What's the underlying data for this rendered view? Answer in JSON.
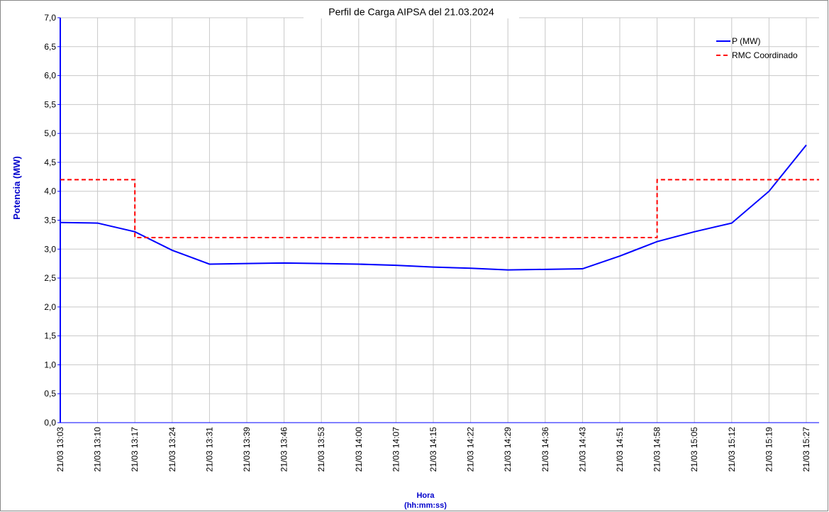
{
  "chart_data": {
    "type": "line",
    "title": "Perfil de Carga AIPSA del 21.03.2024",
    "ylabel": "Potencia (MW)",
    "xlabel": [
      "Hora",
      "(hh:mm:ss)"
    ],
    "categories": [
      "21/03 13:03",
      "21/03 13:10",
      "21/03 13:17",
      "21/03 13:24",
      "21/03 13:31",
      "21/03 13:39",
      "21/03 13:46",
      "21/03 13:53",
      "21/03 14:00",
      "21/03 14:07",
      "21/03 14:15",
      "21/03 14:22",
      "21/03 14:29",
      "21/03 14:36",
      "21/03 14:43",
      "21/03 14:51",
      "21/03 14:58",
      "21/03 15:05",
      "21/03 15:12",
      "21/03 15:19",
      "21/03 15:27"
    ],
    "series": [
      {
        "name": "P (MW)",
        "color": "#0000ff",
        "style": "solid",
        "values": [
          3.46,
          3.45,
          3.3,
          2.98,
          2.74,
          2.75,
          2.76,
          2.75,
          2.74,
          2.72,
          2.69,
          2.67,
          2.64,
          2.65,
          2.66,
          2.88,
          3.13,
          3.3,
          3.45,
          4.0,
          4.8
        ]
      },
      {
        "name": "RMC Coordinado",
        "color": "#ff0000",
        "style": "dashed-step",
        "values": [
          4.2,
          4.2,
          3.2,
          3.2,
          3.2,
          3.2,
          3.2,
          3.2,
          3.2,
          3.2,
          3.2,
          3.2,
          3.2,
          3.2,
          3.2,
          3.2,
          4.2,
          4.2,
          4.2,
          4.2,
          4.2
        ]
      }
    ],
    "ylim": [
      0,
      7
    ],
    "yticks": [
      {
        "value": 0,
        "label": "0,0"
      },
      {
        "value": 0.5,
        "label": "0,5"
      },
      {
        "value": 1,
        "label": "1,0"
      },
      {
        "value": 1.5,
        "label": "1,5"
      },
      {
        "value": 2,
        "label": "2,0"
      },
      {
        "value": 2.5,
        "label": "2,5"
      },
      {
        "value": 3,
        "label": "3,0"
      },
      {
        "value": 3.5,
        "label": "3,5"
      },
      {
        "value": 4,
        "label": "4,0"
      },
      {
        "value": 4.5,
        "label": "4,5"
      },
      {
        "value": 5,
        "label": "5,0"
      },
      {
        "value": 5.5,
        "label": "5,5"
      },
      {
        "value": 6,
        "label": "6,0"
      },
      {
        "value": 6.5,
        "label": "6,5"
      },
      {
        "value": 7,
        "label": "7,0"
      }
    ],
    "grid": true,
    "legend": "top-right"
  }
}
